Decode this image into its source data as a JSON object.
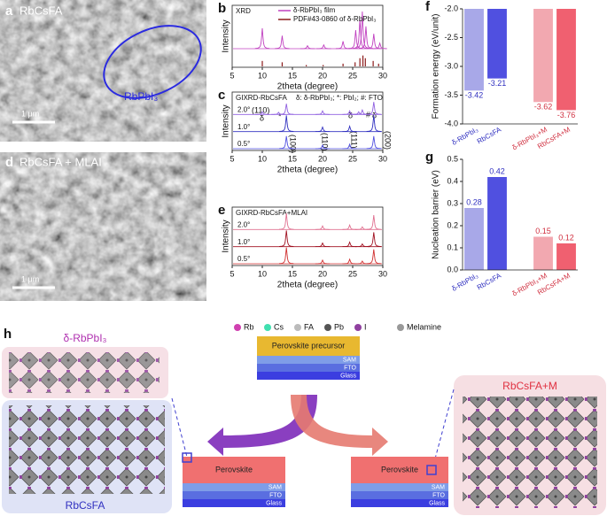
{
  "panels": {
    "a": {
      "label": "a",
      "title": "RbCsFA",
      "annotation": "RbPbI₃",
      "scale_bar": "1 μm"
    },
    "d": {
      "label": "d",
      "title": "RbCsFA + MLAI",
      "scale_bar": "1 μm"
    }
  },
  "chart_data": [
    {
      "type": "xrd",
      "panel": "b",
      "tag": "XRD",
      "xlabel": "2theta (degree)",
      "ylabel": "Intensity",
      "xlim": [
        5,
        30
      ],
      "xticks": [
        5,
        10,
        15,
        20,
        25,
        30
      ],
      "series": [
        {
          "name": "δ-RbPbI₃ film",
          "color": "#c040c0",
          "style": "line",
          "x": [
            10.0,
            13.3,
            17.5,
            20.2,
            23.4,
            25.5,
            26.2,
            26.6,
            27.2,
            28.5,
            29.5
          ],
          "values": [
            0.55,
            0.35,
            0.08,
            0.1,
            0.2,
            0.5,
            0.8,
            1.0,
            0.6,
            0.4,
            0.15
          ]
        },
        {
          "name": "PDF#43-0860 of δ-RbPbI₃",
          "color": "#8b1a1a",
          "style": "stick",
          "x": [
            10.0,
            13.3,
            17.3,
            20.1,
            23.4,
            25.4,
            26.2,
            26.7,
            27.1,
            28.4,
            29.3
          ],
          "values": [
            0.4,
            0.3,
            0.1,
            0.1,
            0.2,
            0.3,
            0.6,
            0.8,
            0.6,
            0.4,
            0.2
          ]
        }
      ]
    },
    {
      "type": "xrd",
      "panel": "c",
      "tag": "GIXRD-RbCsFA",
      "note": "δ: δ-RbPbI₃; *: PbI₂; #: FTO",
      "xlabel": "2theta (degree)",
      "ylabel": "Intensity",
      "xlim": [
        5,
        30
      ],
      "xticks": [
        5,
        10,
        15,
        20,
        25,
        30
      ],
      "annotations": [
        "(110)",
        "δ",
        "*",
        "(100)",
        "(110)",
        "δ",
        "(111)",
        "#",
        "δ",
        "(200)"
      ],
      "series": [
        {
          "name": "2.0°",
          "color": "#9060e0",
          "style": "line",
          "x": [
            10.0,
            12.7,
            14.0,
            20.0,
            24.5,
            26.0,
            26.6,
            28.5
          ],
          "values": [
            0.15,
            0.12,
            0.6,
            0.2,
            0.2,
            0.15,
            0.25,
            0.7
          ]
        },
        {
          "name": "1.0°",
          "color": "#3030c0",
          "style": "line",
          "x": [
            14.0,
            20.0,
            24.5,
            28.5
          ],
          "values": [
            0.9,
            0.25,
            0.3,
            0.9
          ]
        },
        {
          "name": "0.5°",
          "color": "#5050e0",
          "style": "line",
          "x": [
            14.0,
            20.0,
            24.5,
            28.5
          ],
          "values": [
            0.7,
            0.2,
            0.25,
            0.7
          ]
        }
      ]
    },
    {
      "type": "xrd",
      "panel": "e",
      "tag": "GIXRD-RbCsFA+MLAI",
      "xlabel": "2theta (degree)",
      "ylabel": "Intensity",
      "xlim": [
        5,
        30
      ],
      "xticks": [
        5,
        10,
        15,
        20,
        25,
        30
      ],
      "series": [
        {
          "name": "2.0°",
          "color": "#e07090",
          "style": "line",
          "x": [
            14.0,
            20.0,
            24.5,
            26.6,
            28.5
          ],
          "values": [
            0.9,
            0.2,
            0.25,
            0.15,
            0.8
          ]
        },
        {
          "name": "1.0°",
          "color": "#a01020",
          "style": "line",
          "x": [
            14.0,
            20.0,
            24.5,
            26.6,
            28.5
          ],
          "values": [
            0.9,
            0.2,
            0.25,
            0.15,
            0.8
          ]
        },
        {
          "name": "0.5°",
          "color": "#d03030",
          "style": "line",
          "x": [
            14.0,
            20.0,
            24.5,
            26.6,
            28.5
          ],
          "values": [
            0.9,
            0.2,
            0.25,
            0.15,
            0.8
          ]
        }
      ]
    },
    {
      "type": "bar",
      "panel": "f",
      "ylabel": "Formation energy (eV/unit)",
      "categories": [
        "δ-RbPbI₃",
        "RbCsFA",
        "δ-RbPbI₃+M",
        "RbCsFA+M"
      ],
      "values": [
        -3.42,
        -3.21,
        -3.62,
        -3.76
      ],
      "colors": [
        "#a8a8e8",
        "#5050e0",
        "#f2a8b0",
        "#f06070"
      ],
      "category_colors": [
        "#3030c0",
        "#3030c0",
        "#d03040",
        "#d03040"
      ],
      "ylim": [
        -4,
        -2
      ],
      "yticks": [
        {
          "value": -4,
          "label": "-4.0"
        },
        -3.5,
        {
          "value": -3,
          "label": "-3.0"
        },
        -2.5,
        {
          "value": -2,
          "label": "-2.0"
        }
      ]
    },
    {
      "type": "bar",
      "panel": "g",
      "ylabel": "Nucleation barrier (eV)",
      "categories": [
        "δ-RbPbI₃",
        "RbCsFA",
        "δ-RbPbI₃+M",
        "RbCsFA+M"
      ],
      "values": [
        0.28,
        0.42,
        0.15,
        0.12
      ],
      "colors": [
        "#a8a8e8",
        "#5050e0",
        "#f2a8b0",
        "#f06070"
      ],
      "category_colors": [
        "#3030c0",
        "#3030c0",
        "#d03040",
        "#d03040"
      ],
      "ylim": [
        0,
        0.5
      ],
      "yticks": [
        {
          "value": 0,
          "label": "0.0"
        },
        0.1,
        0.2,
        0.3,
        0.4,
        0.5
      ]
    }
  ],
  "schematic": {
    "label": "h",
    "delta": "δ-RbPbI₃",
    "host": "RbCsFA",
    "modified": "RbCsFA+M",
    "legend": [
      "Rb",
      "Cs",
      "FA",
      "Pb",
      "I",
      "Melamine"
    ],
    "precursor": {
      "top": "Perovskite precursor",
      "layers": [
        "SAM",
        "FTO",
        "Glass"
      ]
    },
    "films": [
      {
        "top": "Perovskite",
        "layers": [
          "SAM",
          "FTO",
          "Glass"
        ]
      },
      {
        "top": "Perovskite",
        "layers": [
          "SAM",
          "FTO",
          "Glass"
        ]
      }
    ]
  }
}
